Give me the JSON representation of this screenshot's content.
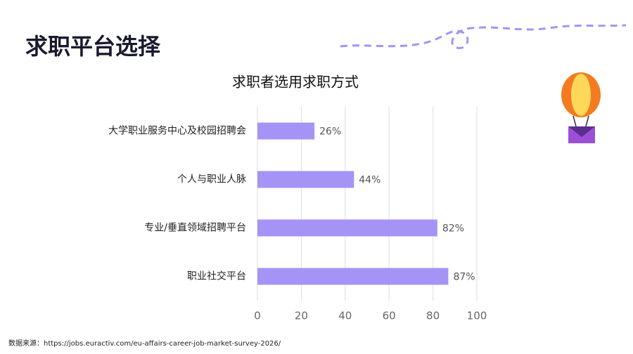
{
  "slide": {
    "title": "求职平台选择",
    "source": "数据来源：https://jobs.euractiv.com/eu-affairs-career-job-market-survey-2026/"
  },
  "chart_data": {
    "type": "hbar",
    "title": "求职者选用求职方式",
    "categories": [
      "大学职业服务中心及校园招聘会",
      "个人与职业人脉",
      "专业/垂直领域招聘平台",
      "职业社交平台"
    ],
    "values": [
      26,
      44,
      82,
      87
    ],
    "value_labels": [
      "26%",
      "44%",
      "82%",
      "87%"
    ],
    "color": "#a594f5",
    "xlim": [
      0,
      100
    ],
    "xticks": [
      0,
      20,
      40,
      60,
      80,
      100
    ],
    "grid": true
  }
}
